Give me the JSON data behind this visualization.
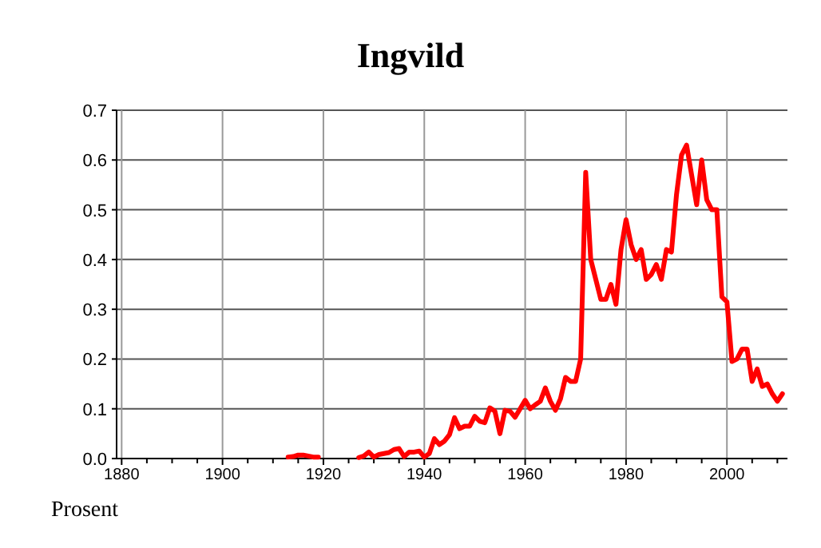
{
  "chart_data": {
    "type": "line",
    "title": "Ingvild",
    "ylabel": "Prosent",
    "x": [
      1913,
      1914,
      1915,
      1916,
      1917,
      1918,
      1919,
      1920,
      1921,
      1922,
      1923,
      1924,
      1925,
      1926,
      1927,
      1928,
      1929,
      1930,
      1931,
      1932,
      1933,
      1934,
      1935,
      1936,
      1937,
      1938,
      1939,
      1940,
      1941,
      1942,
      1943,
      1944,
      1945,
      1946,
      1947,
      1948,
      1949,
      1950,
      1951,
      1952,
      1953,
      1954,
      1955,
      1956,
      1957,
      1958,
      1959,
      1960,
      1961,
      1962,
      1963,
      1964,
      1965,
      1966,
      1967,
      1968,
      1969,
      1970,
      1971,
      1972,
      1973,
      1974,
      1975,
      1976,
      1977,
      1978,
      1979,
      1980,
      1981,
      1982,
      1983,
      1984,
      1985,
      1986,
      1987,
      1988,
      1989,
      1990,
      1991,
      1992,
      1993,
      1994,
      1995,
      1996,
      1997,
      1998,
      1999,
      2000,
      2001,
      2002,
      2003,
      2004,
      2005,
      2006,
      2007,
      2008,
      2009,
      2010,
      2011
    ],
    "series": [
      {
        "color": "#ff0000",
        "values": [
          0.003,
          0.004,
          0.007,
          0.007,
          0.005,
          0.003,
          0.003,
          null,
          null,
          null,
          null,
          null,
          null,
          null,
          0.002,
          0.005,
          0.013,
          0.003,
          0.008,
          0.01,
          0.012,
          0.018,
          0.02,
          0.004,
          0.013,
          0.013,
          0.015,
          0.003,
          0.01,
          0.04,
          0.028,
          0.035,
          0.048,
          0.082,
          0.06,
          0.065,
          0.065,
          0.085,
          0.075,
          0.072,
          0.102,
          0.095,
          0.05,
          0.097,
          0.095,
          0.083,
          0.1,
          0.117,
          0.1,
          0.108,
          0.115,
          0.142,
          0.115,
          0.097,
          0.12,
          0.163,
          0.155,
          0.155,
          0.2,
          0.575,
          0.4,
          0.36,
          0.32,
          0.32,
          0.35,
          0.31,
          0.42,
          0.48,
          0.43,
          0.4,
          0.42,
          0.36,
          0.37,
          0.39,
          0.36,
          0.42,
          0.415,
          0.53,
          0.61,
          0.63,
          0.57,
          0.51,
          0.6,
          0.52,
          0.5,
          0.5,
          0.325,
          0.315,
          0.195,
          0.2,
          0.22,
          0.22,
          0.155,
          0.18,
          0.145,
          0.15,
          0.13,
          0.115,
          0.13
        ]
      }
    ],
    "xlim": [
      1879,
      2012
    ],
    "xticks": [
      1880,
      {
        "value": 1885,
        "label": null
      },
      {
        "value": 1890,
        "label": null
      },
      {
        "value": 1895,
        "label": null
      },
      1900,
      {
        "value": 1905,
        "label": null
      },
      {
        "value": 1910,
        "label": null
      },
      {
        "value": 1915,
        "label": null
      },
      1920,
      {
        "value": 1925,
        "label": null
      },
      {
        "value": 1930,
        "label": null
      },
      {
        "value": 1935,
        "label": null
      },
      1940,
      {
        "value": 1945,
        "label": null
      },
      {
        "value": 1950,
        "label": null
      },
      {
        "value": 1955,
        "label": null
      },
      1960,
      {
        "value": 1965,
        "label": null
      },
      {
        "value": 1970,
        "label": null
      },
      {
        "value": 1975,
        "label": null
      },
      1980,
      {
        "value": 1985,
        "label": null
      },
      {
        "value": 1990,
        "label": null
      },
      {
        "value": 1995,
        "label": null
      },
      2000,
      {
        "value": 2005,
        "label": null
      },
      {
        "value": 2010,
        "label": null
      }
    ],
    "ylim": [
      0,
      0.7
    ],
    "yticks": [
      {
        "value": 0,
        "label": "0.0"
      },
      {
        "value": 0.1,
        "label": "0.1"
      },
      {
        "value": 0.2,
        "label": "0.2"
      },
      {
        "value": 0.3,
        "label": "0.3"
      },
      {
        "value": 0.4,
        "label": "0.4"
      },
      {
        "value": 0.5,
        "label": "0.5"
      },
      {
        "value": 0.6,
        "label": "0.6"
      },
      {
        "value": 0.7,
        "label": "0.7"
      }
    ],
    "grid": true,
    "marker": "none",
    "line_style": "solid"
  }
}
